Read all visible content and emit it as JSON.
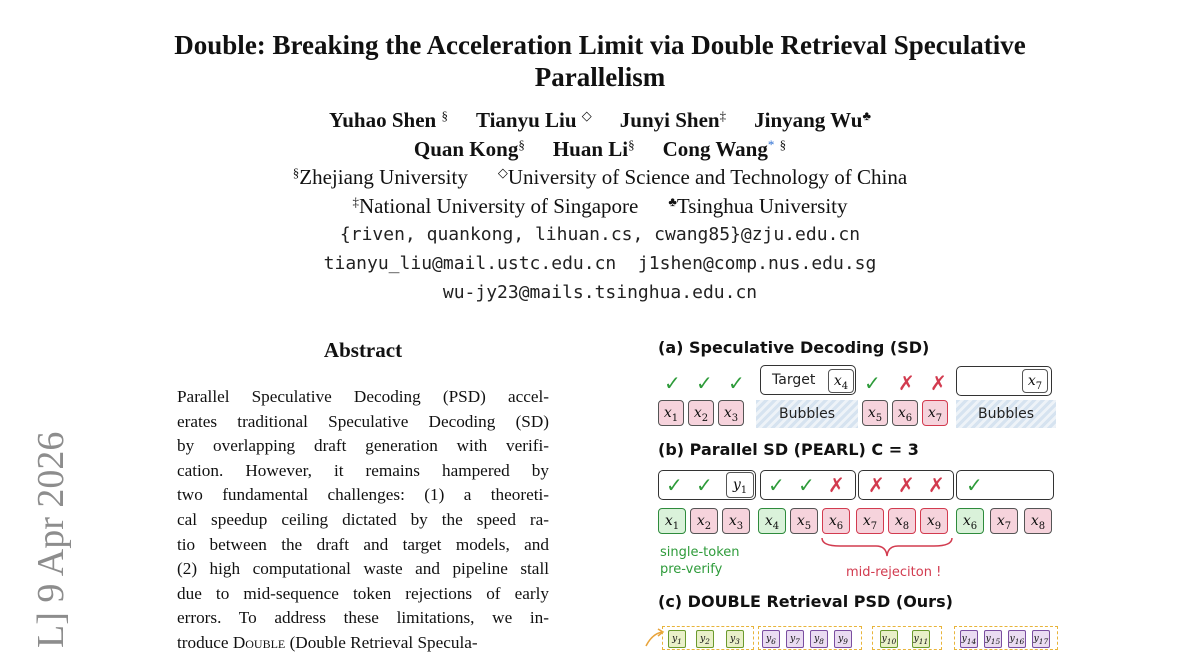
{
  "paper": {
    "title_line1": "Double: Breaking the Acceleration Limit via Double Retrieval Speculative",
    "title_line2": "Parallelism",
    "authors_line1": [
      {
        "name": "Yuhao Shen",
        "mark": "§"
      },
      {
        "name": "Tianyu Liu",
        "mark": "◇"
      },
      {
        "name": "Junyi Shen",
        "mark": "‡"
      },
      {
        "name": "Jinyang Wu",
        "mark": "♣"
      }
    ],
    "authors_line2": [
      {
        "name": "Quan Kong",
        "mark": "§"
      },
      {
        "name": "Huan Li",
        "mark": "§"
      },
      {
        "name": "Cong Wang",
        "mark": "*",
        "mark2": "§"
      }
    ],
    "affiliations_line1": [
      {
        "mark": "§",
        "name": "Zhejiang University"
      },
      {
        "mark": "◇",
        "name": "University of Science and Technology of China"
      }
    ],
    "affiliations_line2": [
      {
        "mark": "‡",
        "name": "National University of Singapore"
      },
      {
        "mark": "♣",
        "name": "Tsinghua University"
      }
    ],
    "emails": [
      "{riven, quankong, lihuan.cs, cwang85}@zju.edu.cn",
      "tianyu_liu@mail.ustc.edu.cn  j1shen@comp.nus.edu.sg",
      "wu-jy23@mails.tsinghua.edu.cn"
    ],
    "arxiv_stamp": "L] 9 Apr 2026"
  },
  "abstract": {
    "heading": "Abstract",
    "lines": [
      "Parallel Speculative Decoding (PSD) accel-",
      "erates traditional Speculative Decoding (SD)",
      "by overlapping draft generation with verifi-",
      "cation.  However, it remains hampered by",
      "two fundamental challenges: (1) a theoreti-",
      "cal speedup ceiling dictated by the speed ra-",
      "tio between the draft and target models, and",
      "(2) high computational waste and pipeline stall",
      "due to mid-sequence token rejections of early",
      "errors.  To address these limitations, we in-"
    ],
    "last_line_prefix": "troduce ",
    "last_line_smallcaps": "Double",
    "last_line_suffix": " (Double Retrieval Specula-"
  },
  "figure": {
    "panel_a": {
      "title": "(a) Speculative Decoding (SD)",
      "target_label": "Target",
      "bubbles_label": "Bubbles",
      "tokens": [
        "x1",
        "x2",
        "x3",
        "x4",
        "x5",
        "x6",
        "x7"
      ]
    },
    "panel_b": {
      "title": "(b) Parallel SD (PEARL)  C = 3",
      "tokens": [
        "x1",
        "x2",
        "x3",
        "x4",
        "x5",
        "x6",
        "x7",
        "x8",
        "x9",
        "x6",
        "x7",
        "x8"
      ],
      "draft_token": "y1",
      "note_left_1": "single-token",
      "note_left_2": "pre-verify",
      "note_right": "mid-rejeciton !"
    },
    "panel_c": {
      "title": "(c) DOUBLE Retrieval PSD (Ours)",
      "tokens": [
        "y1",
        "y2",
        "y3",
        "y6",
        "y7",
        "y8",
        "y9",
        "y10",
        "y11",
        "y14",
        "y15",
        "y16",
        "y17"
      ]
    },
    "colors": {
      "accept": "#2e9b3a",
      "reject": "#d23b4f",
      "bubble": "#d6e3f0"
    }
  }
}
